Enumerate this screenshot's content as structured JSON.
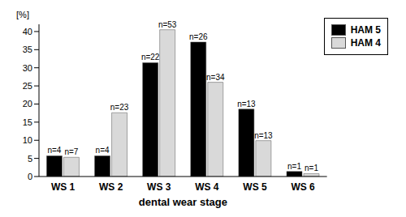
{
  "chart_data": {
    "type": "bar",
    "x_label": "dental wear stage",
    "y_label": "[%]",
    "categories": [
      "WS 1",
      "WS 2",
      "WS 3",
      "WS 4",
      "WS 5",
      "WS 6"
    ],
    "series": [
      {
        "name": "HAM 5",
        "color": "#000000",
        "values": [
          5.7,
          5.7,
          31.4,
          37.1,
          18.6,
          1.4
        ],
        "labels": [
          "n=4",
          "n=4",
          "n=22",
          "n=26",
          "n=13",
          "n=1"
        ]
      },
      {
        "name": "HAM 4",
        "color": "#d9d9d9",
        "values": [
          5.3,
          17.6,
          40.5,
          26.0,
          9.9,
          0.8
        ],
        "labels": [
          "n=7",
          "n=23",
          "n=53",
          "n=34",
          "n=13",
          "n=1"
        ]
      }
    ],
    "ylim": [
      0,
      42
    ],
    "yticks": [
      0,
      5,
      10,
      15,
      20,
      25,
      30,
      35,
      40
    ],
    "grid": false,
    "legend": "top-right"
  }
}
